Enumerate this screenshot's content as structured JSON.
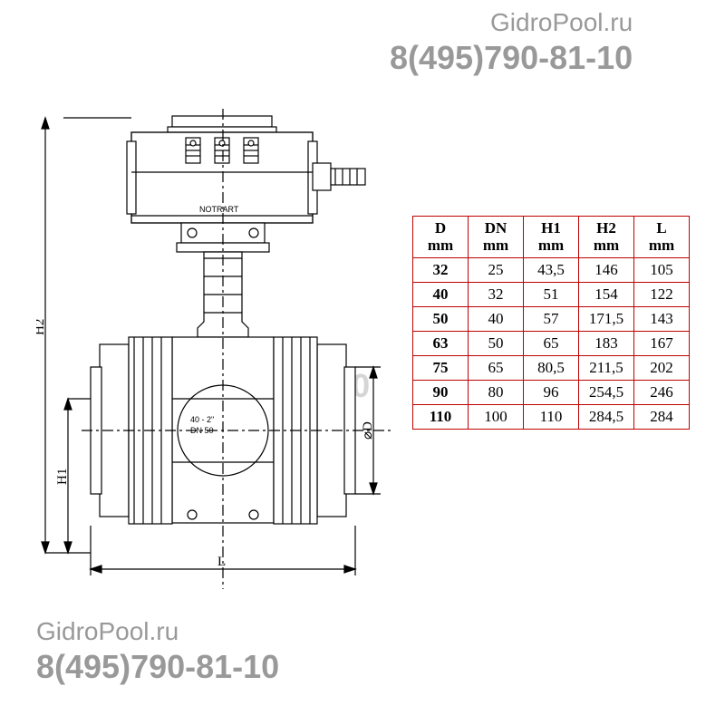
{
  "watermarks": {
    "site": "GidroPool.ru",
    "phone": "8(495)790-81-10"
  },
  "diagram": {
    "dim_labels": {
      "H1": "H1",
      "H2": "H2",
      "L": "L",
      "D": "⌀D"
    },
    "valve_label1": "40 - 2\"",
    "valve_label2": "DN 50",
    "brand": "NOTRART",
    "colors": {
      "line": "#000000",
      "fill_light": "#ffffff",
      "fill_grey": "#d9d9d9"
    },
    "stroke_width": 1.2
  },
  "table": {
    "border_color": "#c00000",
    "header_fontsize": 17,
    "cell_fontsize": 17,
    "columns": [
      {
        "label1": "D",
        "label2": "mm"
      },
      {
        "label1": "DN",
        "label2": "mm"
      },
      {
        "label1": "H1",
        "label2": "mm"
      },
      {
        "label1": "H2",
        "label2": "mm"
      },
      {
        "label1": "L",
        "label2": "mm"
      }
    ],
    "rows": [
      [
        "32",
        "25",
        "43,5",
        "146",
        "105"
      ],
      [
        "40",
        "32",
        "51",
        "154",
        "122"
      ],
      [
        "50",
        "40",
        "57",
        "171,5",
        "143"
      ],
      [
        "63",
        "50",
        "65",
        "183",
        "167"
      ],
      [
        "75",
        "65",
        "80,5",
        "211,5",
        "202"
      ],
      [
        "90",
        "80",
        "96",
        "254,5",
        "246"
      ],
      [
        "110",
        "100",
        "110",
        "284,5",
        "284"
      ]
    ]
  }
}
